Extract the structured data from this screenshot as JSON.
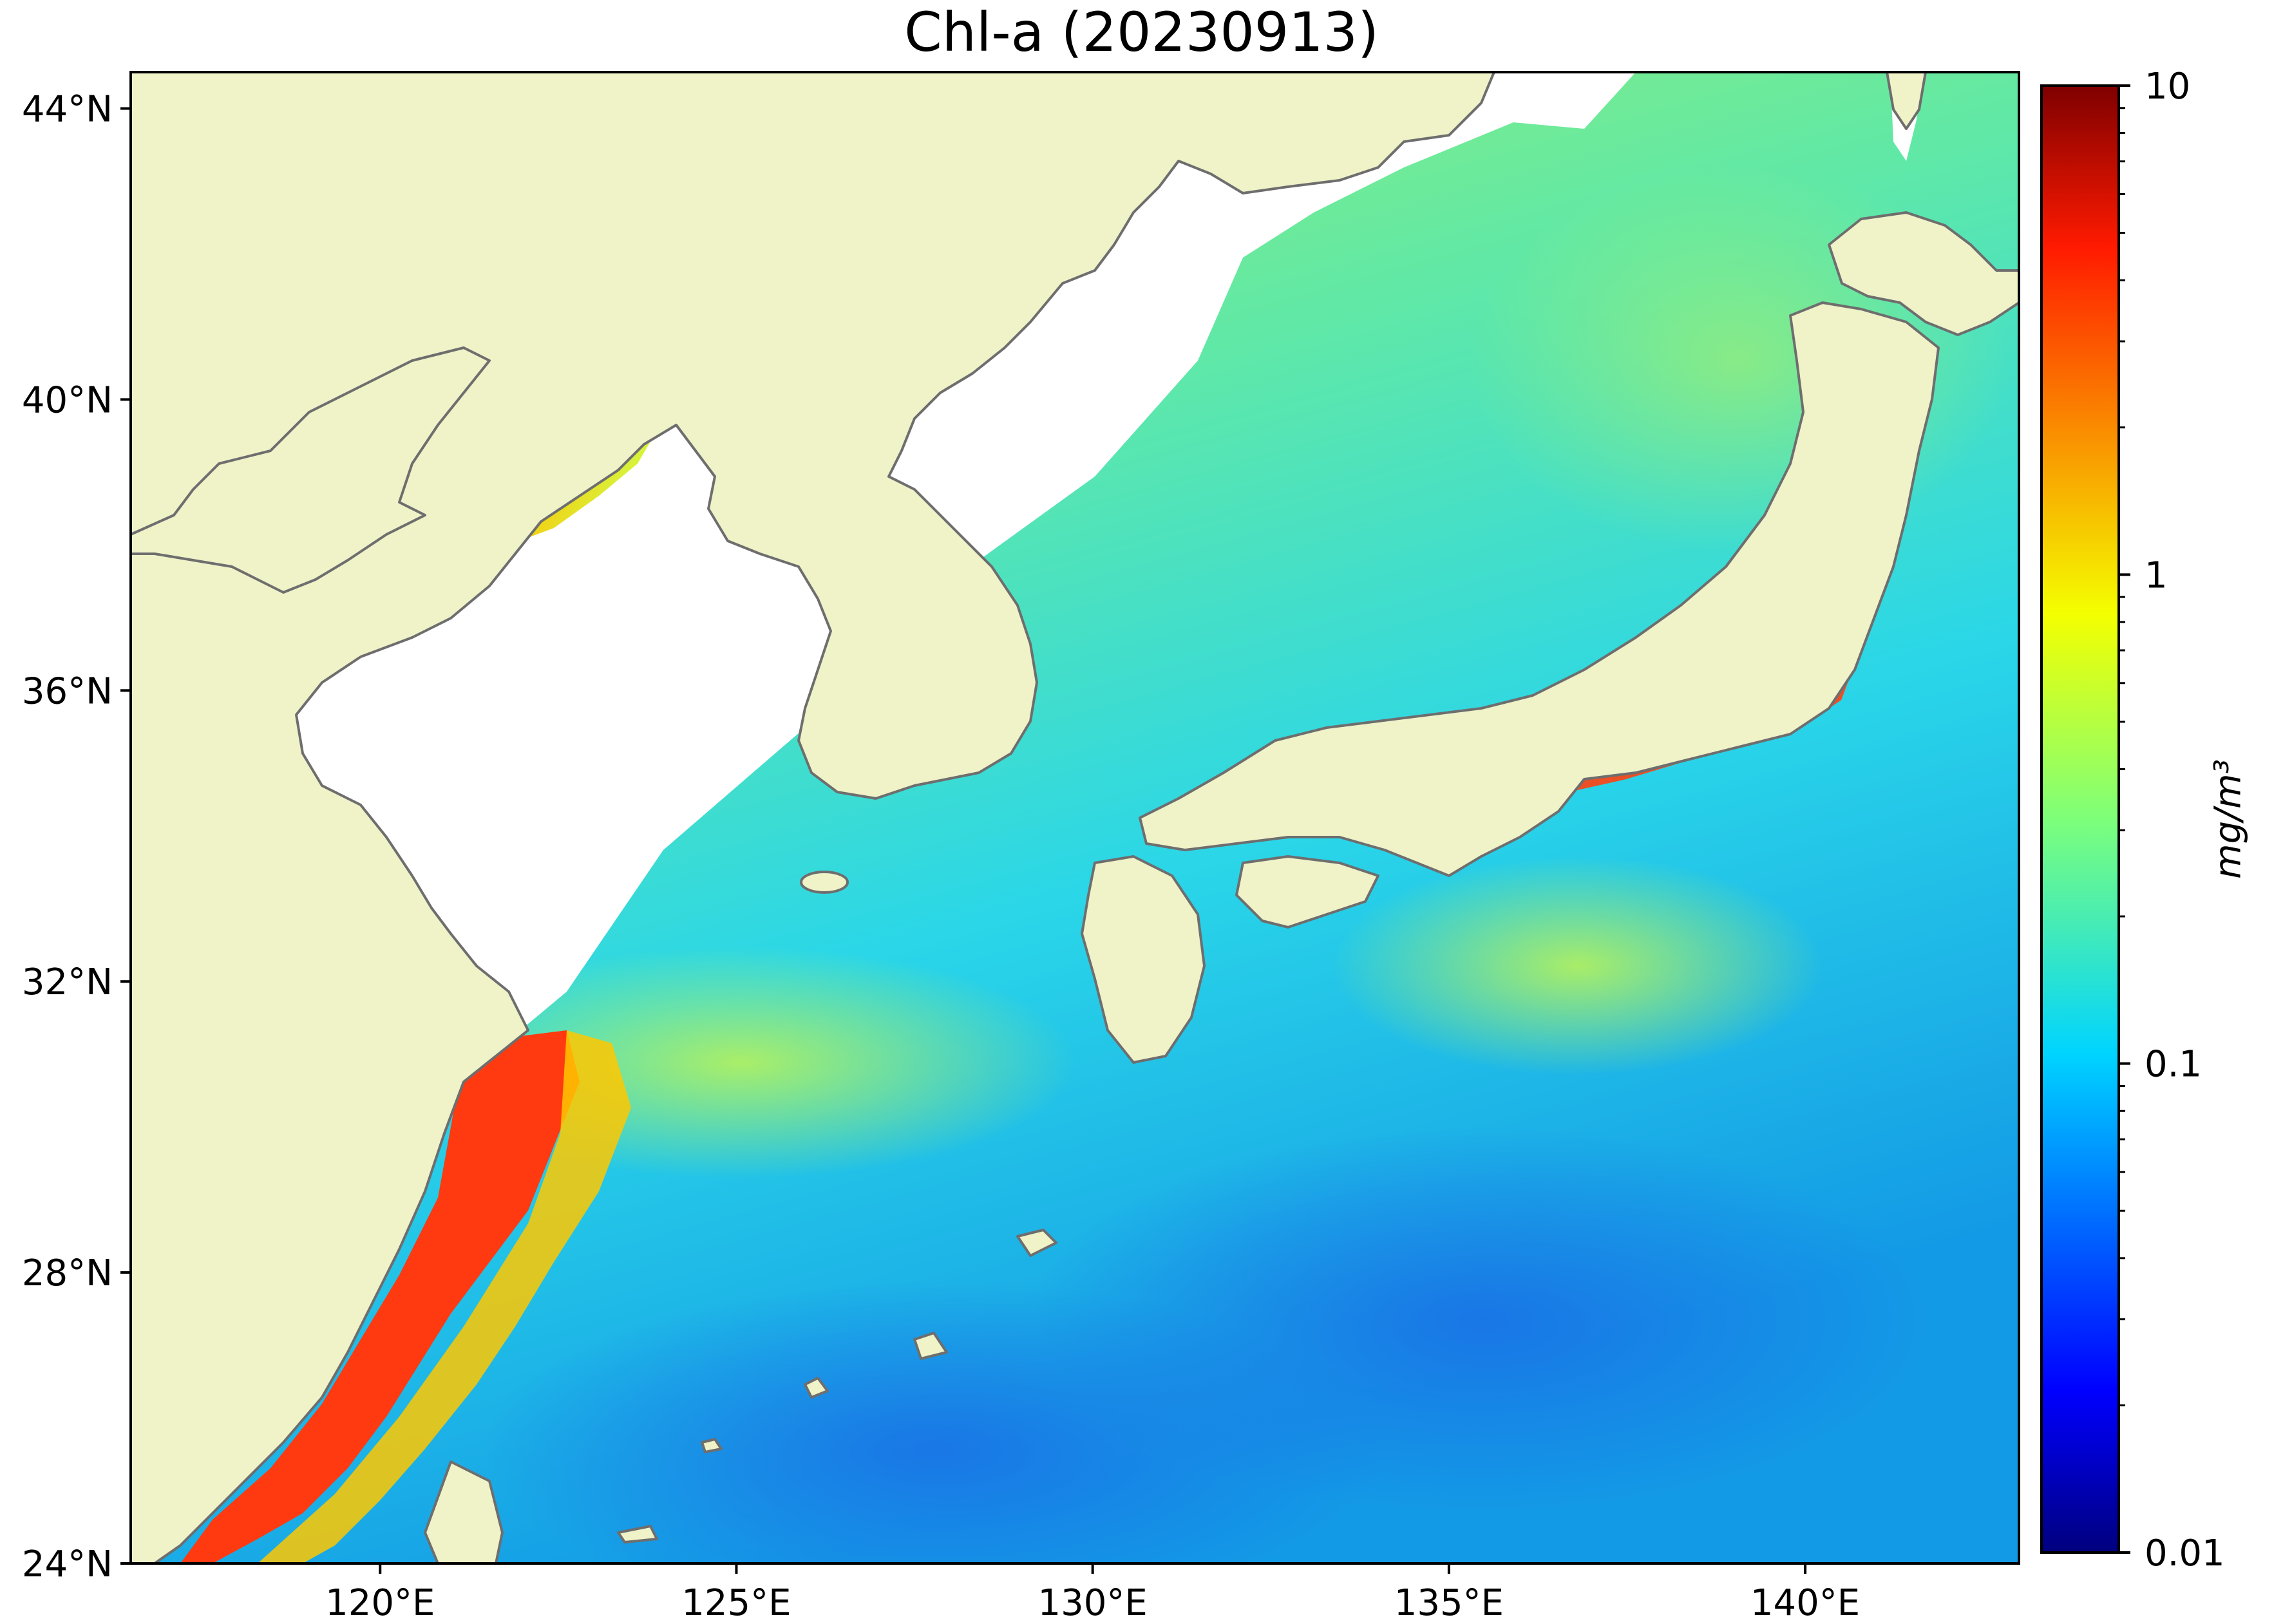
{
  "title": "Chl-a (20230913)",
  "map": {
    "lon_range": [
      116.5,
      143.0
    ],
    "lat_range": [
      24.0,
      44.5
    ],
    "lon_ticks": [
      {
        "value": 120,
        "label": "120°E"
      },
      {
        "value": 125,
        "label": "125°E"
      },
      {
        "value": 130,
        "label": "130°E"
      },
      {
        "value": 135,
        "label": "135°E"
      },
      {
        "value": 140,
        "label": "140°E"
      }
    ],
    "lat_ticks": [
      {
        "value": 24,
        "label": "24°N"
      },
      {
        "value": 28,
        "label": "28°N"
      },
      {
        "value": 32,
        "label": "32°N"
      },
      {
        "value": 36,
        "label": "36°N"
      },
      {
        "value": 40,
        "label": "40°N"
      },
      {
        "value": 44,
        "label": "44°N"
      }
    ],
    "colors": {
      "land": "#f0f2c8",
      "coastline": "#6e6e6e",
      "no_data": "#ffffff"
    }
  },
  "colorbar": {
    "label": "mg/m³",
    "scale": "log",
    "range": [
      0.01,
      10
    ],
    "ticks": [
      {
        "value": 0.01,
        "label": "0.01"
      },
      {
        "value": 0.1,
        "label": "0.1"
      },
      {
        "value": 1,
        "label": "1"
      },
      {
        "value": 10,
        "label": "10"
      }
    ],
    "colormap": "jet"
  }
}
